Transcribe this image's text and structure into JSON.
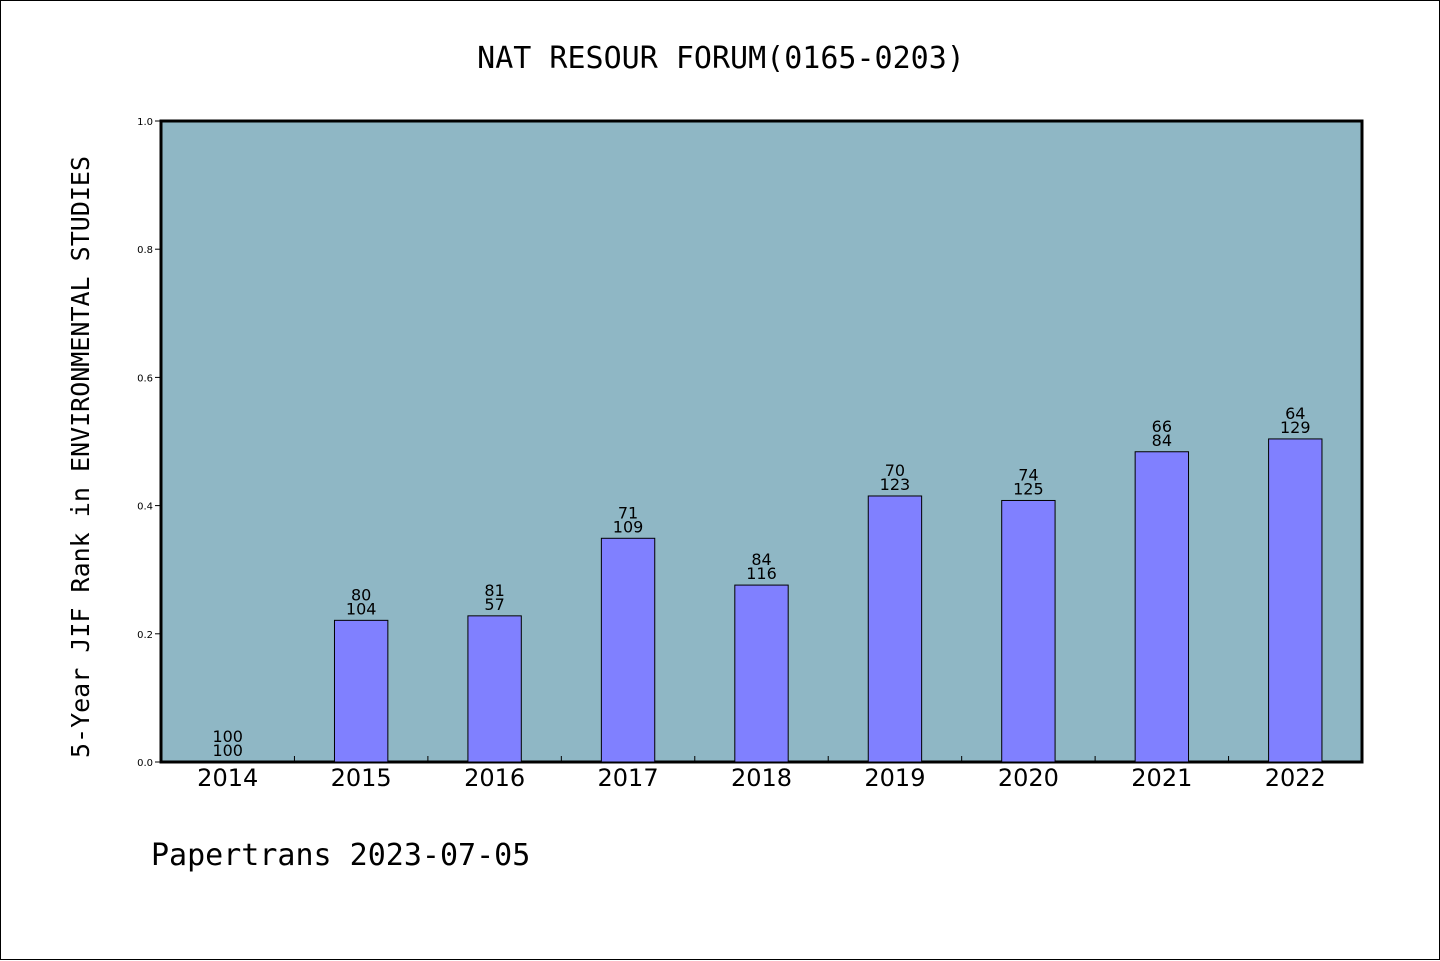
{
  "chart_data": {
    "type": "bar",
    "title": "NAT RESOUR FORUM(0165-0203)",
    "ylabel": "5-Year JIF Rank in ENVIRONMENTAL STUDIES",
    "xlabel": "",
    "footer": "Papertrans 2023-07-05",
    "categories": [
      "2014",
      "2015",
      "2016",
      "2017",
      "2018",
      "2019",
      "2020",
      "2021",
      "2022"
    ],
    "values": [
      0.0,
      0.221,
      0.228,
      0.349,
      0.276,
      0.415,
      0.408,
      0.484,
      0.504
    ],
    "labels_top": [
      "100",
      "80",
      "81",
      "71",
      "84",
      "70",
      "74",
      "66",
      "64"
    ],
    "labels_bottom": [
      "100",
      "104",
      "57",
      "109",
      "116",
      "123",
      "125",
      "84",
      "129"
    ],
    "ylim": [
      0.0,
      1.0
    ],
    "yticks": [
      "0.0",
      "0.2",
      "0.4",
      "0.6",
      "0.8",
      "1.0"
    ],
    "grid": false,
    "legend": "none",
    "colors": {
      "plot_background": "#8fb7c5",
      "bar_fill": "#8080ff",
      "bar_stroke": "#000000",
      "axis": "#000000"
    }
  }
}
